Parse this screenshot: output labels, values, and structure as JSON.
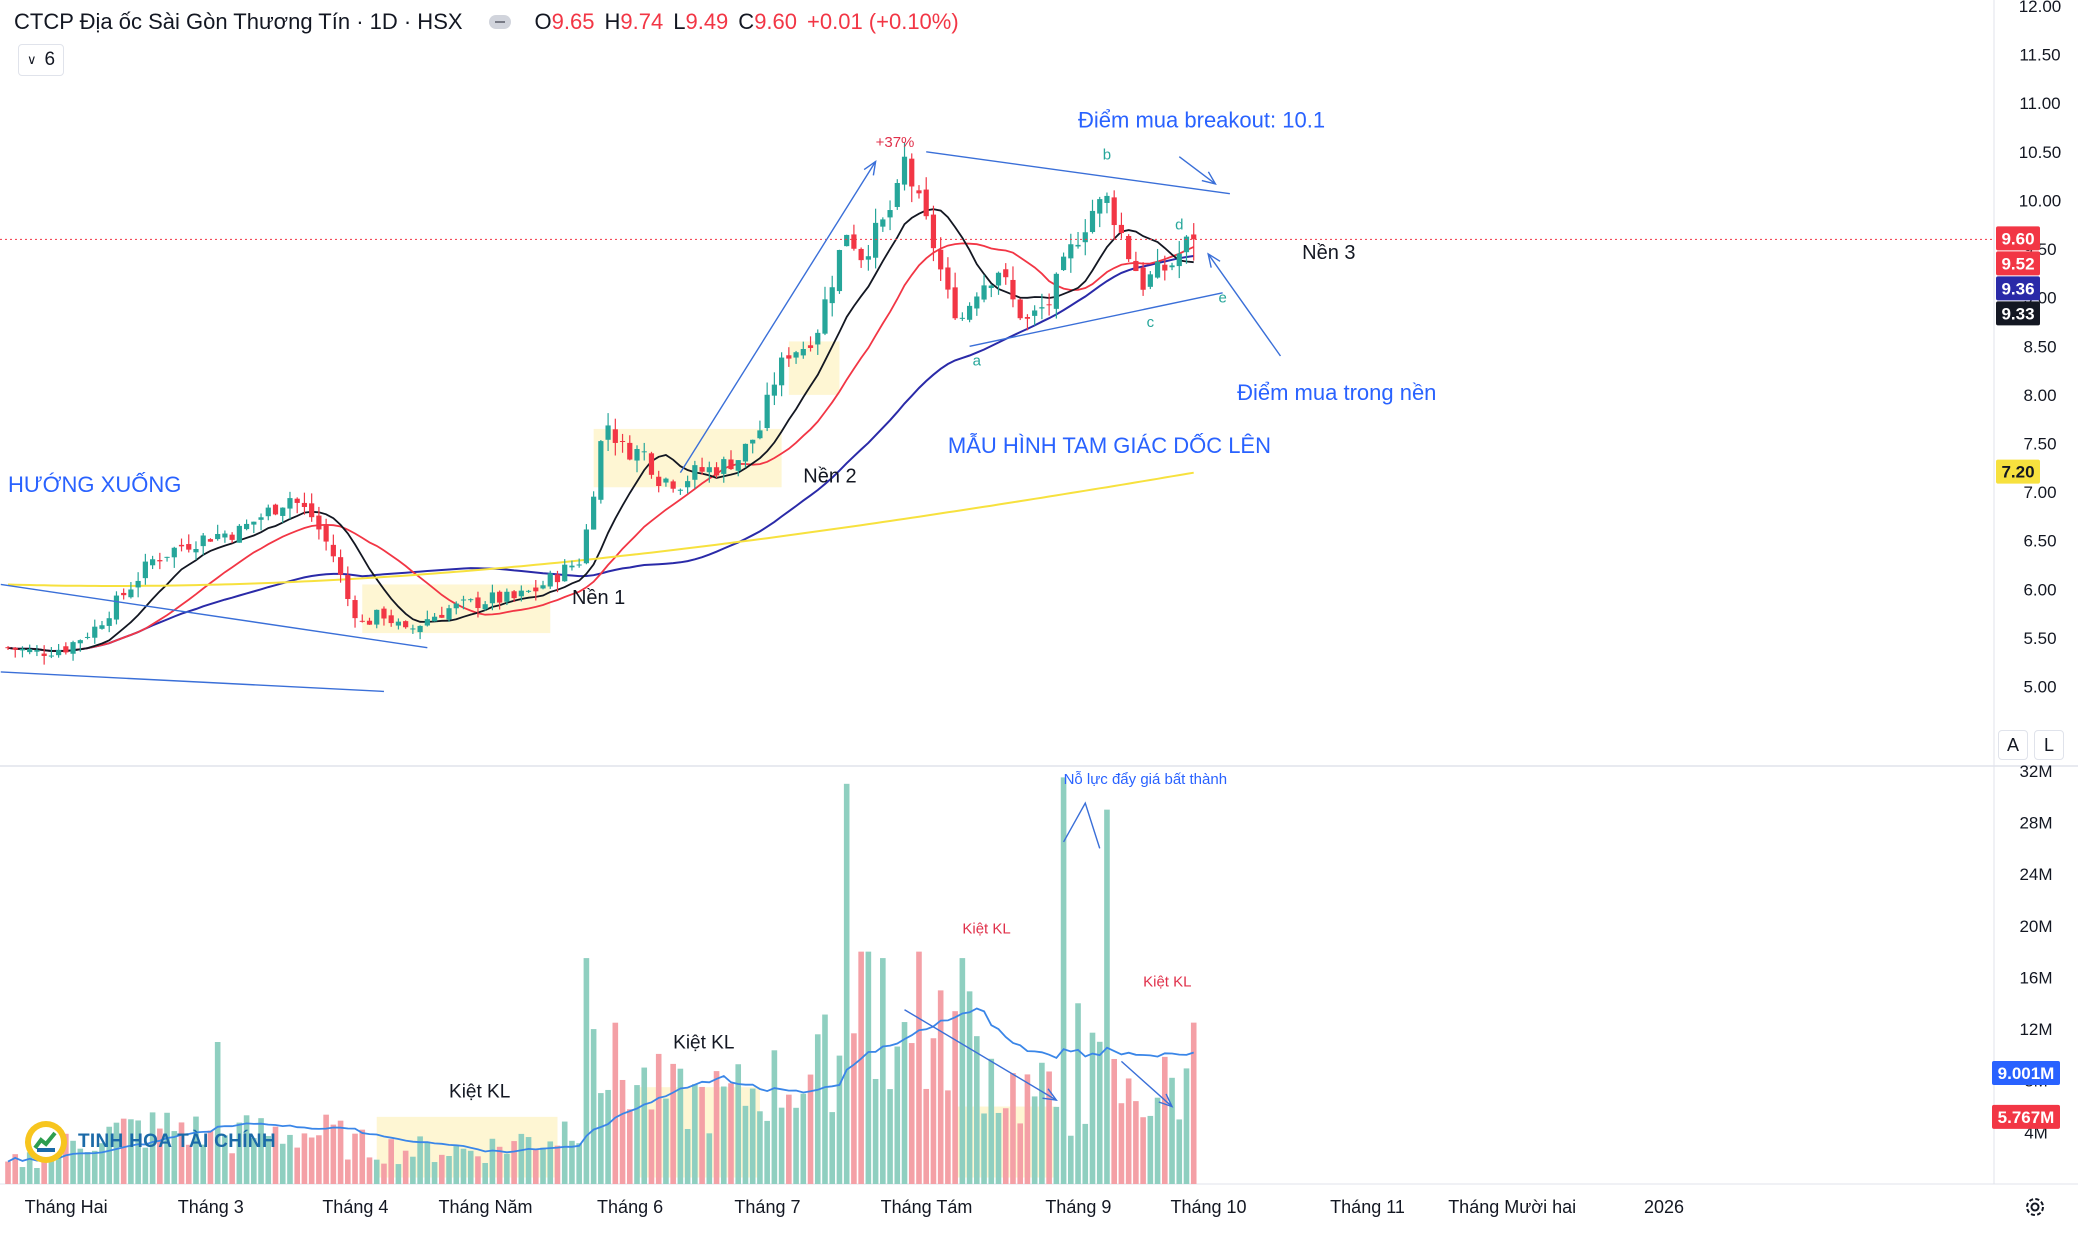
{
  "header": {
    "symbol": "CTCP Địa ốc Sài Gòn Thương Tín · 1D · HSX",
    "o_label": "O",
    "o": "9.65",
    "h_label": "H",
    "h": "9.74",
    "l_label": "L",
    "l": "9.49",
    "c_label": "C",
    "c": "9.60",
    "change": "+0.01 (+0.10%)"
  },
  "indicator_count": "6",
  "scale_buttons": {
    "auto": "A",
    "log": "L"
  },
  "colors": {
    "up": "#26a69a",
    "down": "#f23645",
    "up_vol": "#8fcfc0",
    "down_vol": "#f4a0a6",
    "ma_black": "#131722",
    "ma_red": "#f23645",
    "ma_blue": "#2a2aa8",
    "ma_yellow": "#f7e13e",
    "annot_blue": "#2962ff",
    "annot_red": "#e0304a"
  },
  "logo_text": "TINH HOA TÀI CHÍNH",
  "chart_data": {
    "type": "candlestick",
    "price_axis": {
      "range": [
        4.8,
        12.0
      ],
      "ticks": [
        "12.00",
        "11.50",
        "11.00",
        "10.50",
        "10.00",
        "9.50",
        "9.00",
        "8.50",
        "8.00",
        "7.50",
        "7.00",
        "6.50",
        "6.00",
        "5.50",
        "5.00"
      ]
    },
    "volume_axis": {
      "range": [
        0,
        33
      ],
      "ticks": [
        "32M",
        "28M",
        "24M",
        "20M",
        "16M",
        "12M",
        "8M",
        "4M"
      ]
    },
    "time_labels": [
      "Tháng Hai",
      "Tháng 3",
      "Tháng 4",
      "Tháng Năm",
      "Tháng 6",
      "Tháng 7",
      "Tháng Tám",
      "Tháng 9",
      "Tháng 10",
      "Tháng 11",
      "Tháng Mười hai",
      "2026"
    ],
    "time_label_positions": [
      5,
      25,
      45,
      63,
      83,
      102,
      124,
      145,
      163,
      185,
      205,
      226
    ],
    "price_badges": [
      {
        "value": "9.60",
        "bg": "#f23645",
        "fg": "#ffffff"
      },
      {
        "value": "9.52",
        "bg": "#f23645",
        "fg": "#ffffff"
      },
      {
        "value": "9.36",
        "bg": "#2a2aa8",
        "fg": "#ffffff"
      },
      {
        "value": "9.33",
        "bg": "#131722",
        "fg": "#ffffff"
      },
      {
        "value": "7.20",
        "bg": "#f7e13e",
        "fg": "#131722"
      }
    ],
    "volume_badges": [
      {
        "value": "9.001M",
        "bg": "#2962ff",
        "fg": "#ffffff"
      },
      {
        "value": "5.767M",
        "bg": "#f23645",
        "fg": "#ffffff"
      }
    ],
    "last_price": 9.6,
    "ma_yellow_start": 6.05,
    "ma_yellow_end": 7.2,
    "price_key": [
      [
        0,
        5.4
      ],
      [
        4,
        5.35
      ],
      [
        8,
        5.4
      ],
      [
        12,
        5.6
      ],
      [
        16,
        5.95
      ],
      [
        20,
        6.3
      ],
      [
        24,
        6.45
      ],
      [
        28,
        6.55
      ],
      [
        32,
        6.6
      ],
      [
        36,
        6.8
      ],
      [
        39,
        6.95
      ],
      [
        42,
        6.75
      ],
      [
        45,
        6.35
      ],
      [
        47,
        5.9
      ],
      [
        49,
        5.65
      ],
      [
        52,
        5.75
      ],
      [
        55,
        5.55
      ],
      [
        58,
        5.7
      ],
      [
        61,
        5.8
      ],
      [
        64,
        5.85
      ],
      [
        67,
        5.9
      ],
      [
        70,
        5.9
      ],
      [
        73,
        6.0
      ],
      [
        76,
        6.15
      ],
      [
        79,
        6.3
      ],
      [
        80,
        6.6
      ],
      [
        82,
        7.5
      ],
      [
        83,
        7.7
      ],
      [
        85,
        7.45
      ],
      [
        88,
        7.4
      ],
      [
        90,
        7.15
      ],
      [
        93,
        7.1
      ],
      [
        95,
        7.2
      ],
      [
        98,
        7.25
      ],
      [
        101,
        7.35
      ],
      [
        104,
        7.65
      ],
      [
        106,
        8.15
      ],
      [
        108,
        8.45
      ],
      [
        110,
        8.5
      ],
      [
        112,
        8.7
      ],
      [
        114,
        9.2
      ],
      [
        116,
        9.7
      ],
      [
        118,
        9.45
      ],
      [
        121,
        9.75
      ],
      [
        123,
        10.05
      ],
      [
        124,
        10.4
      ],
      [
        126,
        9.95
      ],
      [
        128,
        9.55
      ],
      [
        130,
        9.0
      ],
      [
        132,
        8.8
      ],
      [
        134,
        9.1
      ],
      [
        137,
        9.3
      ],
      [
        139,
        8.95
      ],
      [
        141,
        8.75
      ],
      [
        144,
        8.95
      ],
      [
        146,
        9.3
      ],
      [
        148,
        9.65
      ],
      [
        150,
        9.9
      ],
      [
        152,
        10.0
      ],
      [
        153,
        9.85
      ],
      [
        155,
        9.45
      ],
      [
        157,
        9.15
      ],
      [
        159,
        9.25
      ],
      [
        161,
        9.35
      ],
      [
        163,
        9.55
      ],
      [
        164,
        9.6
      ]
    ],
    "volume_key": [
      [
        0,
        1.5
      ],
      [
        6,
        2.5
      ],
      [
        12,
        3.8
      ],
      [
        18,
        4.2
      ],
      [
        20,
        4.2
      ],
      [
        24,
        4.5
      ],
      [
        28,
        3.5
      ],
      [
        32,
        3.8
      ],
      [
        36,
        4.0
      ],
      [
        40,
        4.0
      ],
      [
        45,
        3.8
      ],
      [
        48,
        3.0
      ],
      [
        52,
        2.8
      ],
      [
        56,
        2.6
      ],
      [
        60,
        2.7
      ],
      [
        64,
        2.6
      ],
      [
        68,
        2.9
      ],
      [
        72,
        3.5
      ],
      [
        76,
        3.8
      ],
      [
        79,
        5.5
      ],
      [
        82,
        9.5
      ],
      [
        85,
        8.5
      ],
      [
        88,
        7.5
      ],
      [
        92,
        6.5
      ],
      [
        96,
        6.5
      ],
      [
        100,
        6.5
      ],
      [
        104,
        7.5
      ],
      [
        108,
        8.0
      ],
      [
        112,
        8.5
      ],
      [
        116,
        11.5
      ],
      [
        120,
        10.5
      ],
      [
        124,
        11.0
      ],
      [
        128,
        10.0
      ],
      [
        130,
        11.5
      ],
      [
        132,
        12.5
      ],
      [
        135,
        9.5
      ],
      [
        138,
        7.5
      ],
      [
        141,
        7.0
      ],
      [
        144,
        6.5
      ],
      [
        148,
        6.0
      ],
      [
        150,
        8.5
      ],
      [
        152,
        8.0
      ],
      [
        155,
        6.5
      ],
      [
        158,
        7.0
      ],
      [
        161,
        7.5
      ],
      [
        164,
        7.2
      ]
    ],
    "volume_spikes": [
      {
        "i": 29,
        "v": 11.0
      },
      {
        "i": 80,
        "v": 17.5
      },
      {
        "i": 81,
        "v": 12.0
      },
      {
        "i": 116,
        "v": 31.0
      },
      {
        "i": 118,
        "v": 18.0
      },
      {
        "i": 119,
        "v": 18.0
      },
      {
        "i": 121,
        "v": 17.5
      },
      {
        "i": 126,
        "v": 18.0
      },
      {
        "i": 132,
        "v": 17.5
      },
      {
        "i": 146,
        "v": 31.5
      },
      {
        "i": 148,
        "v": 14.0
      },
      {
        "i": 152,
        "v": 29.0
      },
      {
        "i": 164,
        "v": 12.5
      }
    ],
    "highlight_zones": [
      {
        "pane": "price",
        "x": [
          49,
          75
        ],
        "y": [
          5.55,
          6.05
        ]
      },
      {
        "pane": "price",
        "x": [
          81,
          107
        ],
        "y": [
          7.05,
          7.65
        ]
      },
      {
        "pane": "price",
        "x": [
          108,
          115
        ],
        "y": [
          8.0,
          8.55
        ]
      },
      {
        "pane": "volume",
        "x": [
          51,
          76
        ],
        "y": [
          0.5,
          5.2
        ]
      },
      {
        "pane": "volume",
        "x": [
          87,
          104
        ],
        "y": [
          0.5,
          7.5
        ]
      },
      {
        "pane": "volume",
        "x": [
          131,
          145
        ],
        "y": [
          0.5,
          6.0
        ]
      }
    ],
    "trendlines": [
      {
        "pane": "price",
        "p1": [
          -1,
          5.15
        ],
        "p2": [
          52,
          4.95
        ]
      },
      {
        "pane": "price",
        "p1": [
          -1,
          6.05
        ],
        "p2": [
          58,
          5.4
        ]
      },
      {
        "pane": "price",
        "p1": [
          93,
          7.2
        ],
        "p2": [
          120,
          10.4
        ],
        "arrow": true
      },
      {
        "pane": "price",
        "p1": [
          127,
          10.5
        ],
        "p2": [
          169,
          10.07
        ]
      },
      {
        "pane": "price",
        "p1": [
          133,
          8.5
        ],
        "p2": [
          168,
          9.05
        ]
      },
      {
        "pane": "price",
        "p1": [
          162,
          10.45
        ],
        "p2": [
          167,
          10.17
        ],
        "arrow": true
      },
      {
        "pane": "price",
        "p1": [
          176,
          8.4
        ],
        "p2": [
          166,
          9.45
        ],
        "arrow": true
      },
      {
        "pane": "volume",
        "p1": [
          124,
          13.5
        ],
        "p2": [
          145,
          6.5
        ],
        "arrow": true
      },
      {
        "pane": "volume",
        "p1": [
          154,
          9.5
        ],
        "p2": [
          161,
          6.0
        ],
        "arrow": true
      }
    ],
    "annotations": [
      {
        "pane": "price",
        "text": "HƯỚNG XUỐNG",
        "at": [
          0,
          7.0
        ],
        "color": "#2962ff",
        "size": 22,
        "anchor": "start"
      },
      {
        "pane": "price",
        "text": "Nền 1",
        "at": [
          78,
          5.85
        ],
        "color": "#131722",
        "size": 20,
        "anchor": "start"
      },
      {
        "pane": "price",
        "text": "Nền 2",
        "at": [
          110,
          7.1
        ],
        "color": "#131722",
        "size": 20,
        "anchor": "start"
      },
      {
        "pane": "price",
        "text": "Nền 3",
        "at": [
          179,
          9.4
        ],
        "color": "#131722",
        "size": 20,
        "anchor": "start"
      },
      {
        "pane": "price",
        "text": "+37%",
        "at": [
          120,
          10.55
        ],
        "color": "#e0304a",
        "size": 15,
        "anchor": "start"
      },
      {
        "pane": "price",
        "text": "Điểm mua breakout: 10.1",
        "at": [
          148,
          10.75
        ],
        "color": "#2962ff",
        "size": 22,
        "anchor": "start"
      },
      {
        "pane": "price",
        "text": "Điểm mua trong nền",
        "at": [
          170,
          7.95
        ],
        "color": "#2962ff",
        "size": 22,
        "anchor": "start"
      },
      {
        "pane": "price",
        "text": "MẪU HÌNH TAM GIÁC DỐC LÊN",
        "at": [
          130,
          7.4
        ],
        "color": "#2962ff",
        "size": 22,
        "anchor": "start"
      },
      {
        "pane": "price",
        "text": "a",
        "at": [
          134,
          8.3
        ],
        "color": "#26a69a",
        "size": 15,
        "anchor": "middle"
      },
      {
        "pane": "price",
        "text": "b",
        "at": [
          152,
          10.42
        ],
        "color": "#26a69a",
        "size": 15,
        "anchor": "middle"
      },
      {
        "pane": "price",
        "text": "c",
        "at": [
          158,
          8.7
        ],
        "color": "#26a69a",
        "size": 15,
        "anchor": "middle"
      },
      {
        "pane": "price",
        "text": "d",
        "at": [
          162,
          9.7
        ],
        "color": "#26a69a",
        "size": 15,
        "anchor": "middle"
      },
      {
        "pane": "price",
        "text": "e",
        "at": [
          168,
          8.95
        ],
        "color": "#26a69a",
        "size": 15,
        "anchor": "middle"
      },
      {
        "pane": "volume",
        "text": "Kiệt KL",
        "at": [
          61,
          6.7
        ],
        "color": "#131722",
        "size": 19,
        "anchor": "start"
      },
      {
        "pane": "volume",
        "text": "Kiệt KL",
        "at": [
          92,
          10.5
        ],
        "color": "#131722",
        "size": 19,
        "anchor": "start"
      },
      {
        "pane": "volume",
        "text": "Kiệt KL",
        "at": [
          132,
          19.4
        ],
        "color": "#e0304a",
        "size": 15,
        "anchor": "start"
      },
      {
        "pane": "volume",
        "text": "Kiệt KL",
        "at": [
          157,
          15.3
        ],
        "color": "#e0304a",
        "size": 15,
        "anchor": "start"
      },
      {
        "pane": "volume",
        "text": "Nỗ lực đẩy giá bất thành",
        "at": [
          146,
          31.0
        ],
        "color": "#2962ff",
        "size": 15,
        "anchor": "start"
      }
    ]
  }
}
